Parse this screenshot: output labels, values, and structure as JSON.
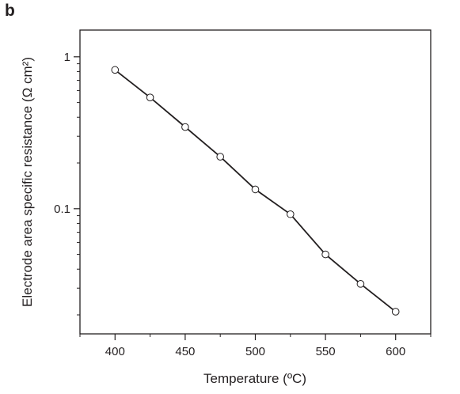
{
  "panel_label": "b",
  "chart_data": {
    "type": "line",
    "title": "",
    "xlabel": "Temperature (ºC)",
    "ylabel": "Electrode area specific resistance (Ω cm²)",
    "x_scale": "linear",
    "y_scale": "log",
    "xlim": [
      375,
      625
    ],
    "ylim": [
      0.015,
      1.5
    ],
    "grid": false,
    "legend": "none",
    "x_ticks": [
      400,
      450,
      500,
      550,
      600
    ],
    "x_tick_labels": [
      "400",
      "450",
      "500",
      "550",
      "600"
    ],
    "y_ticks": [
      1,
      0.1
    ],
    "y_tick_labels": [
      "1",
      "0.1"
    ],
    "series": [
      {
        "x": [
          400,
          425,
          450,
          475,
          500,
          525,
          550,
          575,
          600
        ],
        "y": [
          0.82,
          0.54,
          0.345,
          0.22,
          0.134,
          0.092,
          0.05,
          0.032,
          0.021
        ],
        "marker": "open-circle",
        "color": "#231f20"
      }
    ]
  }
}
